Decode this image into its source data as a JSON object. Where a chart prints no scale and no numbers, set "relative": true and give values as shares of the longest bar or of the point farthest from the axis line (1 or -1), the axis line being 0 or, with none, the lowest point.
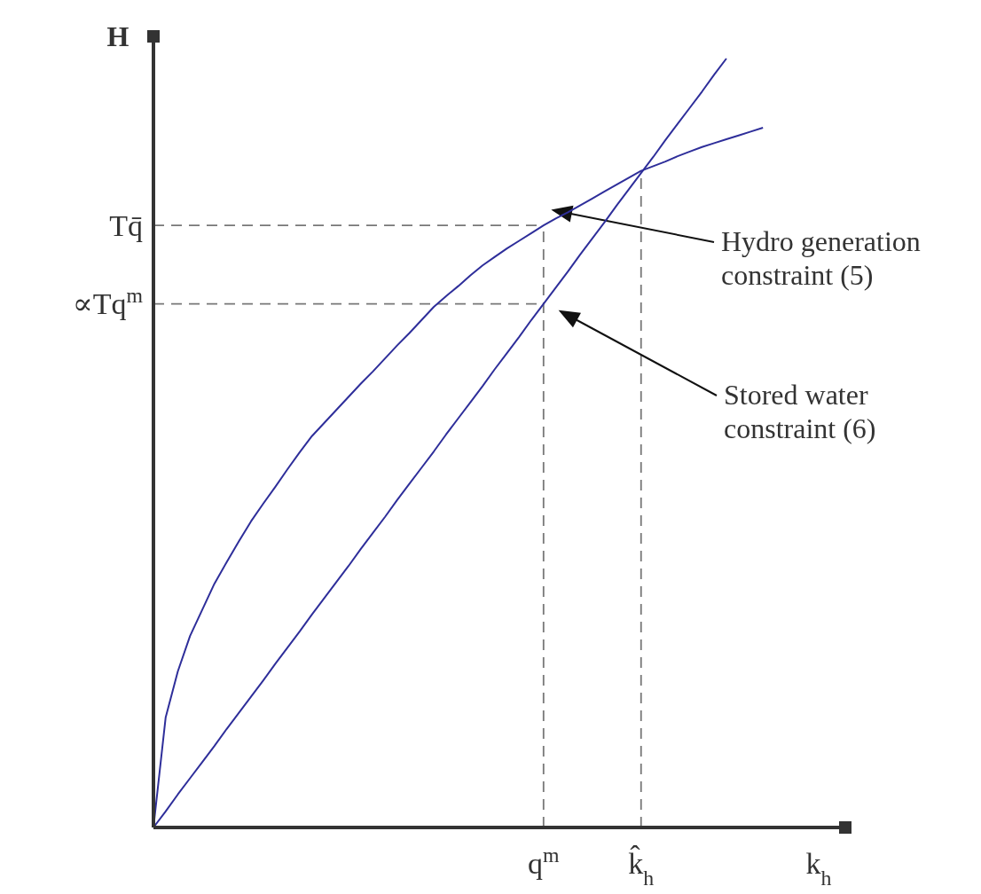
{
  "chart_data": {
    "type": "line",
    "relative": true,
    "xlabel": "k$_{h}$",
    "ylabel": "H",
    "line_style": "solid",
    "categories": [
      null,
      null,
      null,
      null,
      null,
      null,
      null,
      null,
      null,
      null,
      null,
      null,
      null,
      null,
      null,
      null,
      null,
      null,
      null,
      null,
      null,
      null,
      null,
      null,
      null,
      null,
      null,
      null,
      null,
      null,
      null,
      null,
      "q$^{m}$",
      null,
      null,
      null,
      null,
      null,
      null,
      null,
      "k̂$_{h}$",
      null,
      null,
      null,
      null,
      null,
      null,
      null,
      null,
      null,
      null
    ],
    "series": [
      {
        "color": "#2e2e9a",
        "values": [
          0,
          0.143,
          0.203,
          0.249,
          0.283,
          0.317,
          0.345,
          0.372,
          0.398,
          0.421,
          0.443,
          0.466,
          0.488,
          0.509,
          0.526,
          0.543,
          0.56,
          0.577,
          0.593,
          0.61,
          0.627,
          0.643,
          0.66,
          0.677,
          0.691,
          0.704,
          0.718,
          0.731,
          0.742,
          0.753,
          0.763,
          0.773,
          0.783,
          0.792,
          0.8,
          0.809,
          0.818,
          0.827,
          0.836,
          0.845,
          0.854,
          0.86,
          0.866,
          0.873,
          0.879,
          0.885,
          0.89,
          0.895,
          0.9,
          0.905,
          0.91
        ]
      },
      {
        "color": "#2e2e9a",
        "values": [
          0,
          0.021,
          0.043,
          0.064,
          0.085,
          0.106,
          0.128,
          0.149,
          0.17,
          0.191,
          0.213,
          0.234,
          0.255,
          0.277,
          0.298,
          0.319,
          0.34,
          0.362,
          0.383,
          0.404,
          0.426,
          0.447,
          0.468,
          0.489,
          0.511,
          0.532,
          0.553,
          0.574,
          0.596,
          0.617,
          0.638,
          0.66,
          0.681,
          0.702,
          0.723,
          0.745,
          0.766,
          0.787,
          0.809,
          0.83,
          0.851,
          0.872,
          0.894,
          0.915,
          0.936,
          0.957,
          0.979,
          1,
          null,
          null,
          null
        ]
      }
    ],
    "ref_lines": [
      {
        "axis": "x",
        "value": "q$^{m}$",
        "color": "#777777",
        "line_style": "dashed"
      },
      {
        "axis": "x",
        "value": "k̂$_{h}$",
        "color": "#777777",
        "line_style": "dashed"
      },
      {
        "axis": "y",
        "value": 0.783,
        "label": "Tq̄",
        "color": "#777777",
        "line_style": "dashed"
      },
      {
        "axis": "y",
        "value": 0.681,
        "label": "∝Tq$^{m}$",
        "color": "#777777",
        "line_style": "dashed"
      }
    ],
    "annotations": [
      "Hydro generation constraint (5)",
      "Stored water constraint (6)"
    ]
  }
}
